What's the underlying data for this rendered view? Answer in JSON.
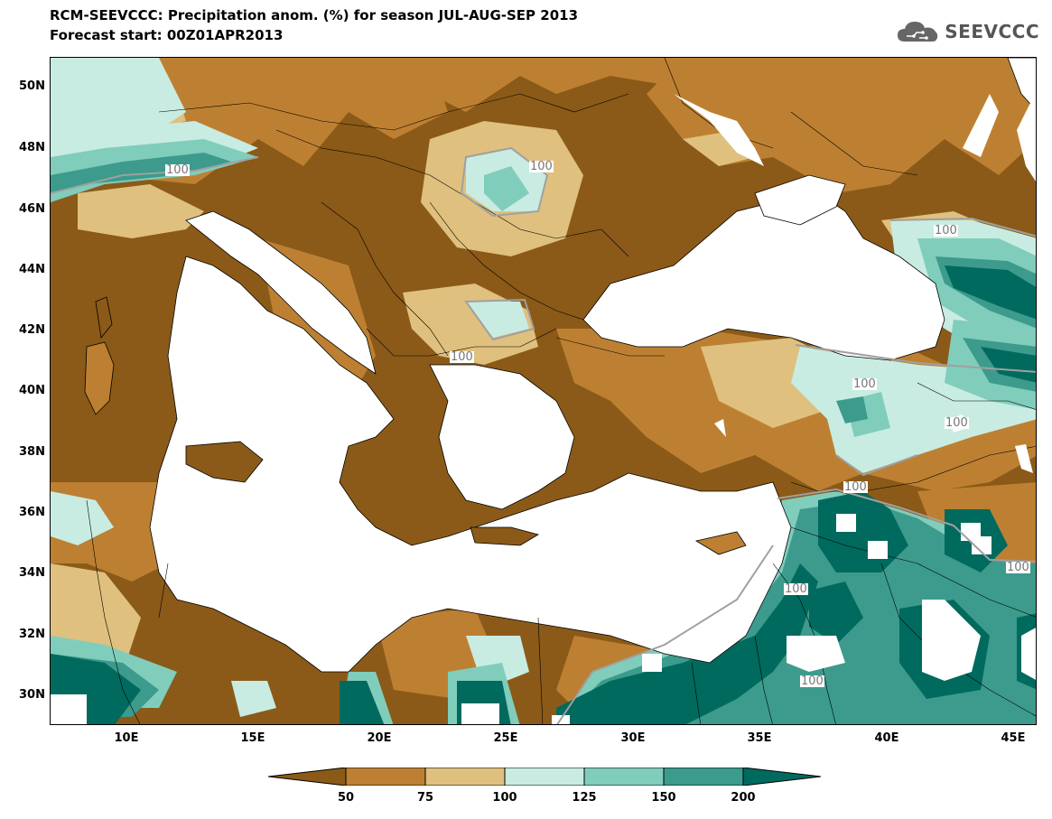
{
  "title_line1": "RCM-SEEVCCC: Precipitation anom. (%) for season JUL-AUG-SEP 2013",
  "title_line2": "Forecast start: 00Z01APR2013",
  "logo_text": "SEEVCCC",
  "y_labels": [
    "50N",
    "48N",
    "46N",
    "44N",
    "42N",
    "40N",
    "38N",
    "36N",
    "34N",
    "32N",
    "30N"
  ],
  "x_labels": [
    "10E",
    "15E",
    "20E",
    "25E",
    "30E",
    "35E",
    "40E",
    "45E"
  ],
  "colorbar_labels": [
    "50",
    "75",
    "100",
    "125",
    "150",
    "200"
  ],
  "colors": {
    "lt50": "#8b5a18",
    "c50_75": "#bd8032",
    "c75_100": "#dfc07e",
    "c100_125": "#c8ece2",
    "c125_150": "#80cdbc",
    "c150_200": "#3c9b8c",
    "gt200": "#006a5e",
    "sea": "#ffffff"
  },
  "contour_label": "100",
  "map_data": {
    "variable": "Precipitation anomaly (%)",
    "season": "JUL-AUG-SEP 2013",
    "lon_range": [
      7,
      46
    ],
    "lat_range": [
      29,
      51
    ]
  }
}
